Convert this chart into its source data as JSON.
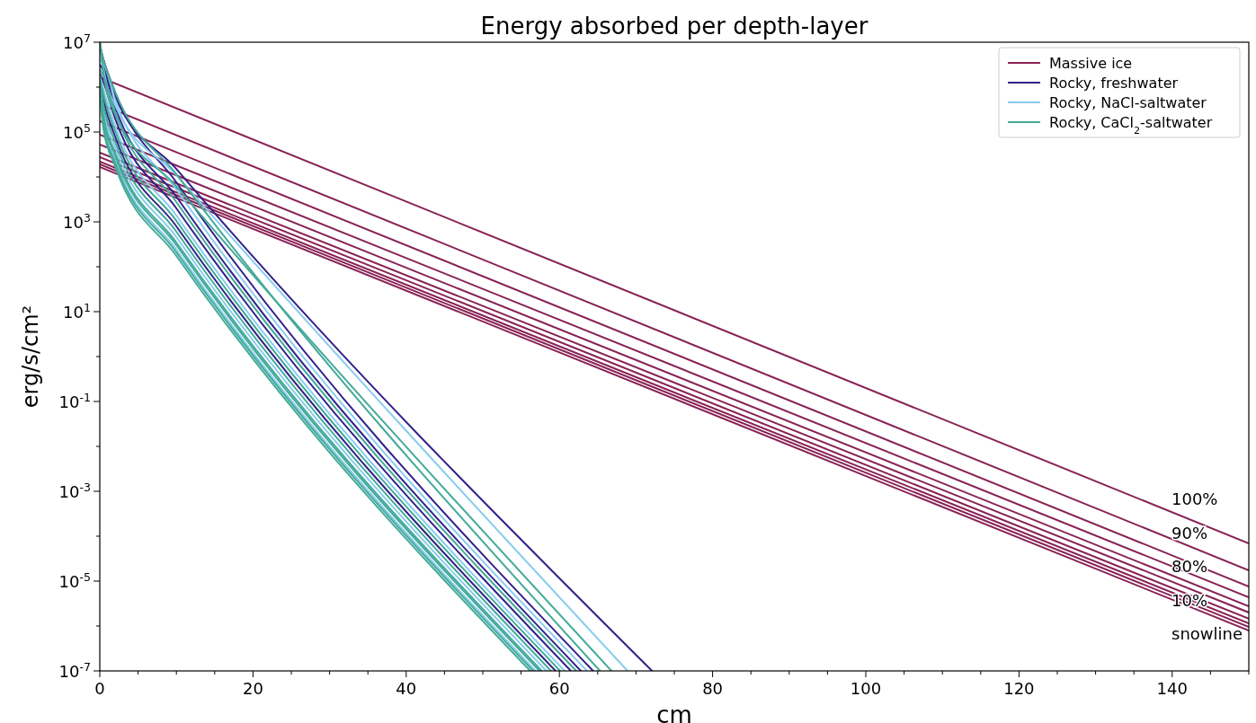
{
  "chart_data": {
    "type": "line",
    "title": "Energy absorbed per depth-layer",
    "xlabel": "cm",
    "ylabel": "erg/s/cm²",
    "log": "y",
    "grid": false,
    "legend": "top right",
    "line_style": "solid",
    "marker": "none",
    "xlim": [
      0,
      150
    ],
    "ylim": [
      1e-07,
      10000000.0
    ],
    "xticks": [
      0,
      {
        "value": 5,
        "label": null
      },
      {
        "value": 10,
        "label": null
      },
      {
        "value": 15,
        "label": null
      },
      20,
      {
        "value": 25,
        "label": null
      },
      {
        "value": 30,
        "label": null
      },
      {
        "value": 35,
        "label": null
      },
      40,
      {
        "value": 45,
        "label": null
      },
      {
        "value": 50,
        "label": null
      },
      {
        "value": 55,
        "label": null
      },
      60,
      {
        "value": 65,
        "label": null
      },
      {
        "value": 70,
        "label": null
      },
      {
        "value": 75,
        "label": null
      },
      80,
      {
        "value": 85,
        "label": null
      },
      {
        "value": 90,
        "label": null
      },
      {
        "value": 95,
        "label": null
      },
      100,
      {
        "value": 105,
        "label": null
      },
      {
        "value": 110,
        "label": null
      },
      {
        "value": 115,
        "label": null
      },
      120,
      {
        "value": 125,
        "label": null
      },
      {
        "value": 130,
        "label": null
      },
      {
        "value": 135,
        "label": null
      },
      140,
      {
        "value": 145,
        "label": null
      },
      {
        "value": 150,
        "label": null
      }
    ],
    "yticks": [
      {
        "value": 1e-07,
        "label": "10$^{-7}$"
      },
      {
        "value": 1e-06,
        "label": null
      },
      {
        "value": 1e-05,
        "label": "10$^{-5}$"
      },
      {
        "value": 0.0001,
        "label": null
      },
      {
        "value": 0.001,
        "label": "10$^{-3}$"
      },
      {
        "value": 0.01,
        "label": null
      },
      {
        "value": 0.1,
        "label": "10$^{-1}$"
      },
      {
        "value": 1,
        "label": null
      },
      {
        "value": 10,
        "label": "10$^{1}$"
      },
      {
        "value": 100,
        "label": null
      },
      {
        "value": 1000.0,
        "label": "10$^{3}$"
      },
      {
        "value": 10000.0,
        "label": null
      },
      {
        "value": 100000.0,
        "label": "10$^{5}$"
      },
      {
        "value": 1000000.0,
        "label": null
      },
      {
        "value": 10000000.0,
        "label": "10$^{7}$"
      }
    ],
    "annotations": [
      "100%",
      "90%",
      "80%",
      "10%",
      "snowline"
    ],
    "series": [
      {
        "name": "Massive ice",
        "color": "#882255",
        "x": [
          0,
          150
        ],
        "values": [
          1660000.0,
          6.92e-05
        ]
      },
      {
        "color": "#882255",
        "x": [
          0,
          150
        ],
        "values": [
          417000.0,
          1.74e-05
        ]
      },
      {
        "color": "#882255",
        "x": [
          0,
          150
        ],
        "values": [
          174000.0,
          7.59e-06
        ]
      },
      {
        "color": "#882255",
        "x": [
          0,
          150
        ],
        "values": [
          87100.0,
          4.37e-06
        ]
      },
      {
        "color": "#882255",
        "x": [
          0,
          150
        ],
        "values": [
          52500.0,
          2.75e-06
        ]
      },
      {
        "color": "#882255",
        "x": [
          0,
          150
        ],
        "values": [
          34700.0,
          2e-06
        ]
      },
      {
        "color": "#882255",
        "x": [
          0,
          150
        ],
        "values": [
          27500.0,
          1.45e-06
        ]
      },
      {
        "color": "#882255",
        "x": [
          0,
          150
        ],
        "values": [
          21900.0,
          1.15e-06
        ]
      },
      {
        "color": "#882255",
        "x": [
          0,
          150
        ],
        "values": [
          19100.0,
          9.55e-07
        ]
      },
      {
        "color": "#882255",
        "x": [
          0,
          150
        ],
        "values": [
          16600.0,
          7.94e-07
        ]
      },
      {
        "name": "Rocky, freshwater",
        "color": "#332288",
        "x": [
          0,
          0.5,
          2,
          10,
          59.5
        ],
        "values": [
          1410000.0,
          501000.0,
          79400.0,
          794,
          1e-07
        ]
      },
      {
        "color": "#332288",
        "x": [
          0,
          0.5,
          2,
          10,
          61.5
        ],
        "values": [
          2000000.0,
          1260000.0,
          200000.0,
          2000.0,
          1e-07
        ]
      },
      {
        "color": "#332288",
        "x": [
          0,
          0.5,
          2,
          10,
          62.8
        ],
        "values": [
          3160000.0,
          2290000.0,
          363000.0,
          3630.0,
          1e-07
        ]
      },
      {
        "color": "#332288",
        "x": [
          0,
          0.5,
          2,
          10,
          64.4
        ],
        "values": [
          7940000.0,
          3980000.0,
          759000.0,
          7590.0,
          1e-07
        ]
      },
      {
        "color": "#332288",
        "x": [
          0,
          0.5,
          2,
          10,
          72.1
        ],
        "values": [
          10000000.0,
          3160000.0,
          631000.0,
          15100.0,
          1e-07
        ]
      },
      {
        "name": "Rocky, NaCl-saltwater",
        "color": "#88ccee",
        "x": [
          0,
          0.5,
          2,
          10,
          56.9
        ],
        "values": [
          794000.0,
          151000.0,
          24000.0,
          240,
          1e-07
        ]
      },
      {
        "color": "#88ccee",
        "x": [
          0,
          0.5,
          2,
          10,
          58.3
        ],
        "values": [
          1120000.0,
          288000.0,
          45700.0,
          457,
          1e-07
        ]
      },
      {
        "color": "#88ccee",
        "x": [
          0,
          0.5,
          2,
          10,
          60.7
        ],
        "values": [
          1780000.0,
          871000.0,
          138000.0,
          1380.0,
          1e-07
        ]
      },
      {
        "color": "#88ccee",
        "x": [
          0,
          0.5,
          2,
          10,
          63.6
        ],
        "values": [
          3980000.0,
          3310000.0,
          525000.0,
          5250.0,
          1e-07
        ]
      },
      {
        "color": "#88ccee",
        "x": [
          0,
          0.5,
          2,
          10,
          68.9
        ],
        "values": [
          10000000.0,
          2510000.0,
          398000.0,
          11000.0,
          1e-07
        ]
      },
      {
        "name": "Rocky, CaCl$_{2}$-saltwater",
        "color": "#44aa99",
        "x": [
          0,
          0.5,
          2,
          10,
          56.2
        ],
        "values": [
          631000.0,
          110000.0,
          17400.0,
          174,
          1e-07
        ]
      },
      {
        "color": "#44aa99",
        "x": [
          0,
          0.5,
          2,
          10,
          56.6
        ],
        "values": [
          708000.0,
          132000.0,
          20900.0,
          209,
          1e-07
        ]
      },
      {
        "color": "#44aa99",
        "x": [
          0,
          0.5,
          2,
          10,
          57.4
        ],
        "values": [
          891000.0,
          191000.0,
          30200.0,
          302,
          1e-07
        ]
      },
      {
        "color": "#44aa99",
        "x": [
          0,
          0.5,
          2,
          10,
          57.7
        ],
        "values": [
          1000000.0,
          219000.0,
          34700.0,
          347,
          1e-07
        ]
      },
      {
        "color": "#44aa99",
        "x": [
          0,
          0.5,
          2,
          10,
          58.9
        ],
        "values": [
          1260000.0,
          380000.0,
          60300.0,
          603,
          1e-07
        ]
      },
      {
        "color": "#44aa99",
        "x": [
          0,
          0.5,
          2,
          10,
          60.1
        ],
        "values": [
          1580000.0,
          661000.0,
          105000.0,
          1050.0,
          1e-07
        ]
      },
      {
        "color": "#44aa99",
        "x": [
          0,
          0.5,
          2,
          10,
          62.2
        ],
        "values": [
          2510000.0,
          1740000.0,
          275000.0,
          2750.0,
          1e-07
        ]
      },
      {
        "color": "#44aa99",
        "x": [
          0,
          0.5,
          2,
          10,
          65.3
        ],
        "values": [
          8910000.0,
          3980000.0,
          794000.0,
          11500.0,
          1e-07
        ]
      },
      {
        "color": "#44aa99",
        "x": [
          0,
          0.5,
          2,
          10,
          66.8
        ],
        "values": [
          10000000.0,
          2000000.0,
          251000.0,
          6170.0,
          1e-07
        ]
      }
    ]
  }
}
